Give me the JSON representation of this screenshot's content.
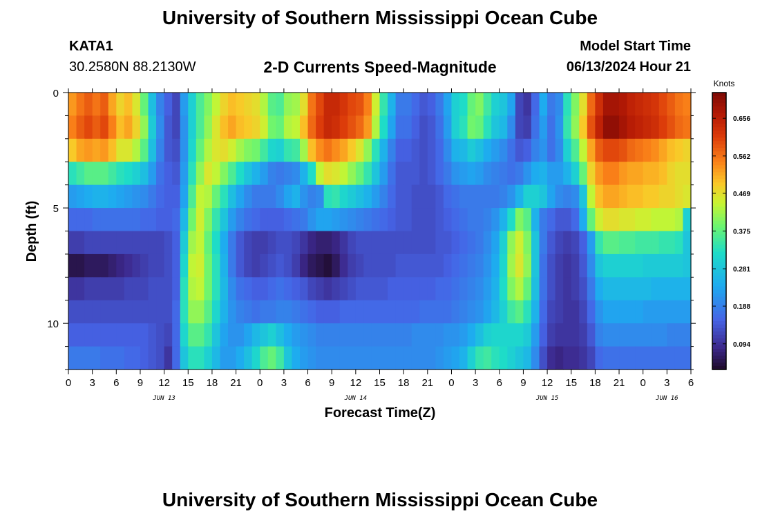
{
  "header": {
    "title": "University of Southern Mississippi Ocean Cube",
    "station_id": "KATA1",
    "station_coords": "30.2580N  88.2130W",
    "chart_title": "2-D Currents Speed-Magnitude",
    "model_start_label": "Model Start Time",
    "model_start_value": "06/13/2024 Hour 21"
  },
  "footer": {
    "title": "University of Southern Mississippi Ocean Cube"
  },
  "chart_data": {
    "type": "heatmap",
    "title": "2-D Currents Speed-Magnitude",
    "xlabel": "Forecast Time(Z)",
    "ylabel": "Depth (ft)",
    "x_ticks": [
      "0",
      "3",
      "6",
      "9",
      "12",
      "15",
      "18",
      "21",
      "0",
      "3",
      "6",
      "9",
      "12",
      "15",
      "18",
      "21",
      "0",
      "3",
      "6",
      "9",
      "12",
      "15",
      "18",
      "21",
      "0",
      "3",
      "6"
    ],
    "x_range_hours": [
      0,
      78
    ],
    "date_labels": [
      {
        "label": "JUN 13",
        "hour": 12
      },
      {
        "label": "JUN 14",
        "hour": 36
      },
      {
        "label": "JUN 15",
        "hour": 60
      },
      {
        "label": "JUN 16",
        "hour": 75
      }
    ],
    "y_ticks": [
      "0",
      "5",
      "10"
    ],
    "y_range_ft": [
      0,
      12
    ],
    "depth_rows_ft": [
      0,
      1,
      2,
      3,
      4,
      5,
      6,
      7,
      8,
      9,
      10,
      11
    ],
    "time_step_hours": 1,
    "colorbar": {
      "units": "Knots",
      "tick_labels": [
        "0.656",
        "0.562",
        "0.469",
        "0.375",
        "0.281",
        "0.188",
        "0.094"
      ],
      "tick_values": [
        0.656,
        0.562,
        0.469,
        0.375,
        0.281,
        0.188,
        0.094
      ],
      "range": [
        0.03,
        0.72
      ]
    },
    "speed_knots_rows": [
      [
        0.53,
        0.56,
        0.58,
        0.56,
        0.58,
        0.52,
        0.48,
        0.5,
        0.46,
        0.38,
        0.27,
        0.19,
        0.15,
        0.12,
        0.22,
        0.3,
        0.36,
        0.4,
        0.44,
        0.48,
        0.5,
        0.49,
        0.48,
        0.47,
        0.43,
        0.37,
        0.36,
        0.41,
        0.42,
        0.47,
        0.56,
        0.6,
        0.64,
        0.64,
        0.62,
        0.6,
        0.59,
        0.55,
        0.45,
        0.34,
        0.25,
        0.18,
        0.18,
        0.16,
        0.14,
        0.15,
        0.18,
        0.23,
        0.3,
        0.32,
        0.38,
        0.4,
        0.35,
        0.3,
        0.28,
        0.23,
        0.12,
        0.1,
        0.16,
        0.24,
        0.18,
        0.2,
        0.33,
        0.4,
        0.47,
        0.57,
        0.63,
        0.68,
        0.68,
        0.67,
        0.65,
        0.64,
        0.63,
        0.62,
        0.6,
        0.58,
        0.56,
        0.55
      ],
      [
        0.55,
        0.58,
        0.6,
        0.58,
        0.6,
        0.55,
        0.5,
        0.52,
        0.48,
        0.41,
        0.29,
        0.2,
        0.14,
        0.12,
        0.21,
        0.3,
        0.36,
        0.41,
        0.46,
        0.5,
        0.52,
        0.5,
        0.49,
        0.48,
        0.45,
        0.39,
        0.38,
        0.43,
        0.44,
        0.5,
        0.57,
        0.61,
        0.64,
        0.63,
        0.61,
        0.59,
        0.57,
        0.53,
        0.43,
        0.32,
        0.23,
        0.17,
        0.17,
        0.15,
        0.13,
        0.14,
        0.17,
        0.22,
        0.3,
        0.33,
        0.39,
        0.38,
        0.33,
        0.28,
        0.26,
        0.2,
        0.12,
        0.11,
        0.17,
        0.22,
        0.17,
        0.21,
        0.34,
        0.41,
        0.49,
        0.59,
        0.65,
        0.7,
        0.7,
        0.68,
        0.66,
        0.65,
        0.64,
        0.63,
        0.61,
        0.59,
        0.57,
        0.56
      ],
      [
        0.49,
        0.52,
        0.53,
        0.52,
        0.53,
        0.5,
        0.46,
        0.46,
        0.43,
        0.37,
        0.27,
        0.19,
        0.14,
        0.13,
        0.21,
        0.31,
        0.38,
        0.43,
        0.46,
        0.47,
        0.45,
        0.42,
        0.4,
        0.39,
        0.35,
        0.31,
        0.3,
        0.34,
        0.35,
        0.42,
        0.5,
        0.54,
        0.56,
        0.54,
        0.52,
        0.49,
        0.46,
        0.41,
        0.33,
        0.25,
        0.19,
        0.15,
        0.15,
        0.14,
        0.13,
        0.14,
        0.16,
        0.2,
        0.25,
        0.26,
        0.29,
        0.27,
        0.24,
        0.22,
        0.2,
        0.17,
        0.14,
        0.15,
        0.19,
        0.21,
        0.17,
        0.2,
        0.3,
        0.36,
        0.44,
        0.52,
        0.58,
        0.6,
        0.6,
        0.59,
        0.57,
        0.56,
        0.55,
        0.54,
        0.52,
        0.5,
        0.49,
        0.48
      ],
      [
        0.33,
        0.35,
        0.37,
        0.37,
        0.37,
        0.35,
        0.33,
        0.32,
        0.3,
        0.27,
        0.22,
        0.17,
        0.15,
        0.14,
        0.22,
        0.33,
        0.41,
        0.46,
        0.44,
        0.4,
        0.36,
        0.32,
        0.28,
        0.25,
        0.22,
        0.19,
        0.18,
        0.19,
        0.2,
        0.25,
        0.32,
        0.44,
        0.47,
        0.46,
        0.44,
        0.41,
        0.38,
        0.34,
        0.28,
        0.22,
        0.17,
        0.14,
        0.14,
        0.14,
        0.13,
        0.14,
        0.16,
        0.18,
        0.21,
        0.22,
        0.23,
        0.22,
        0.2,
        0.19,
        0.18,
        0.17,
        0.18,
        0.21,
        0.24,
        0.25,
        0.22,
        0.22,
        0.25,
        0.3,
        0.38,
        0.48,
        0.53,
        0.55,
        0.55,
        0.53,
        0.52,
        0.52,
        0.51,
        0.51,
        0.5,
        0.48,
        0.47,
        0.47
      ],
      [
        0.22,
        0.23,
        0.24,
        0.25,
        0.25,
        0.24,
        0.23,
        0.22,
        0.21,
        0.2,
        0.18,
        0.16,
        0.15,
        0.15,
        0.23,
        0.36,
        0.44,
        0.43,
        0.38,
        0.33,
        0.27,
        0.23,
        0.2,
        0.18,
        0.18,
        0.18,
        0.2,
        0.23,
        0.25,
        0.21,
        0.19,
        0.2,
        0.33,
        0.34,
        0.31,
        0.29,
        0.27,
        0.25,
        0.22,
        0.19,
        0.16,
        0.14,
        0.14,
        0.13,
        0.13,
        0.13,
        0.14,
        0.16,
        0.17,
        0.18,
        0.18,
        0.18,
        0.18,
        0.18,
        0.19,
        0.21,
        0.25,
        0.3,
        0.3,
        0.28,
        0.23,
        0.2,
        0.19,
        0.2,
        0.28,
        0.44,
        0.5,
        0.52,
        0.52,
        0.51,
        0.5,
        0.5,
        0.49,
        0.49,
        0.48,
        0.48,
        0.47,
        0.46
      ],
      [
        0.16,
        0.16,
        0.16,
        0.17,
        0.17,
        0.17,
        0.17,
        0.17,
        0.17,
        0.16,
        0.16,
        0.15,
        0.15,
        0.16,
        0.26,
        0.39,
        0.45,
        0.4,
        0.34,
        0.28,
        0.22,
        0.19,
        0.17,
        0.16,
        0.15,
        0.15,
        0.15,
        0.16,
        0.17,
        0.18,
        0.21,
        0.23,
        0.23,
        0.22,
        0.21,
        0.2,
        0.19,
        0.18,
        0.17,
        0.16,
        0.15,
        0.14,
        0.14,
        0.13,
        0.13,
        0.13,
        0.14,
        0.15,
        0.16,
        0.17,
        0.18,
        0.18,
        0.19,
        0.21,
        0.25,
        0.32,
        0.4,
        0.37,
        0.25,
        0.18,
        0.16,
        0.14,
        0.14,
        0.16,
        0.24,
        0.38,
        0.45,
        0.47,
        0.47,
        0.46,
        0.46,
        0.45,
        0.45,
        0.44,
        0.44,
        0.44,
        0.43,
        0.3
      ],
      [
        0.11,
        0.11,
        0.12,
        0.12,
        0.12,
        0.12,
        0.12,
        0.12,
        0.12,
        0.12,
        0.12,
        0.12,
        0.13,
        0.15,
        0.29,
        0.42,
        0.44,
        0.38,
        0.32,
        0.24,
        0.18,
        0.14,
        0.12,
        0.11,
        0.11,
        0.12,
        0.13,
        0.13,
        0.12,
        0.1,
        0.08,
        0.07,
        0.07,
        0.08,
        0.1,
        0.12,
        0.13,
        0.13,
        0.13,
        0.13,
        0.13,
        0.13,
        0.13,
        0.13,
        0.13,
        0.13,
        0.14,
        0.14,
        0.15,
        0.16,
        0.17,
        0.18,
        0.2,
        0.23,
        0.3,
        0.41,
        0.45,
        0.4,
        0.28,
        0.18,
        0.14,
        0.12,
        0.11,
        0.12,
        0.15,
        0.22,
        0.34,
        0.37,
        0.37,
        0.36,
        0.36,
        0.35,
        0.35,
        0.35,
        0.34,
        0.34,
        0.33,
        0.28
      ],
      [
        0.05,
        0.05,
        0.06,
        0.06,
        0.06,
        0.07,
        0.08,
        0.09,
        0.1,
        0.11,
        0.12,
        0.12,
        0.13,
        0.15,
        0.31,
        0.44,
        0.45,
        0.39,
        0.33,
        0.25,
        0.18,
        0.14,
        0.12,
        0.11,
        0.12,
        0.13,
        0.14,
        0.13,
        0.11,
        0.08,
        0.06,
        0.05,
        0.04,
        0.06,
        0.09,
        0.11,
        0.12,
        0.13,
        0.13,
        0.13,
        0.13,
        0.14,
        0.14,
        0.14,
        0.14,
        0.14,
        0.14,
        0.15,
        0.16,
        0.17,
        0.18,
        0.19,
        0.21,
        0.24,
        0.31,
        0.42,
        0.46,
        0.41,
        0.28,
        0.17,
        0.13,
        0.11,
        0.1,
        0.11,
        0.14,
        0.2,
        0.28,
        0.3,
        0.3,
        0.3,
        0.3,
        0.3,
        0.29,
        0.29,
        0.29,
        0.29,
        0.29,
        0.28
      ],
      [
        0.1,
        0.1,
        0.11,
        0.11,
        0.11,
        0.11,
        0.11,
        0.12,
        0.12,
        0.12,
        0.13,
        0.13,
        0.13,
        0.15,
        0.33,
        0.43,
        0.44,
        0.39,
        0.33,
        0.26,
        0.2,
        0.17,
        0.16,
        0.15,
        0.15,
        0.16,
        0.17,
        0.16,
        0.15,
        0.14,
        0.12,
        0.11,
        0.1,
        0.11,
        0.12,
        0.13,
        0.14,
        0.14,
        0.14,
        0.14,
        0.15,
        0.15,
        0.15,
        0.15,
        0.15,
        0.15,
        0.16,
        0.16,
        0.17,
        0.18,
        0.19,
        0.2,
        0.22,
        0.25,
        0.32,
        0.4,
        0.43,
        0.38,
        0.27,
        0.17,
        0.13,
        0.11,
        0.1,
        0.11,
        0.13,
        0.18,
        0.24,
        0.26,
        0.26,
        0.26,
        0.26,
        0.26,
        0.26,
        0.25,
        0.25,
        0.25,
        0.25,
        0.25
      ],
      [
        0.13,
        0.13,
        0.13,
        0.13,
        0.13,
        0.13,
        0.13,
        0.13,
        0.13,
        0.13,
        0.13,
        0.13,
        0.13,
        0.16,
        0.33,
        0.41,
        0.41,
        0.37,
        0.31,
        0.25,
        0.21,
        0.19,
        0.18,
        0.17,
        0.18,
        0.18,
        0.19,
        0.19,
        0.18,
        0.17,
        0.16,
        0.15,
        0.15,
        0.15,
        0.16,
        0.16,
        0.16,
        0.16,
        0.16,
        0.16,
        0.16,
        0.16,
        0.16,
        0.16,
        0.17,
        0.17,
        0.17,
        0.17,
        0.18,
        0.19,
        0.2,
        0.21,
        0.23,
        0.26,
        0.3,
        0.35,
        0.37,
        0.33,
        0.25,
        0.16,
        0.12,
        0.11,
        0.1,
        0.1,
        0.12,
        0.16,
        0.21,
        0.23,
        0.23,
        0.23,
        0.23,
        0.23,
        0.22,
        0.22,
        0.22,
        0.22,
        0.22,
        0.22
      ],
      [
        0.15,
        0.15,
        0.15,
        0.15,
        0.15,
        0.15,
        0.15,
        0.15,
        0.15,
        0.15,
        0.14,
        0.13,
        0.12,
        0.16,
        0.31,
        0.37,
        0.37,
        0.34,
        0.28,
        0.23,
        0.21,
        0.21,
        0.23,
        0.26,
        0.28,
        0.3,
        0.27,
        0.24,
        0.22,
        0.21,
        0.2,
        0.19,
        0.19,
        0.19,
        0.19,
        0.19,
        0.19,
        0.19,
        0.19,
        0.19,
        0.19,
        0.19,
        0.19,
        0.2,
        0.2,
        0.2,
        0.2,
        0.21,
        0.21,
        0.22,
        0.24,
        0.27,
        0.3,
        0.31,
        0.31,
        0.31,
        0.31,
        0.29,
        0.22,
        0.15,
        0.11,
        0.1,
        0.1,
        0.1,
        0.11,
        0.14,
        0.19,
        0.2,
        0.2,
        0.2,
        0.2,
        0.2,
        0.2,
        0.2,
        0.2,
        0.19,
        0.19,
        0.19
      ],
      [
        0.18,
        0.18,
        0.18,
        0.18,
        0.17,
        0.17,
        0.17,
        0.16,
        0.16,
        0.15,
        0.14,
        0.13,
        0.1,
        0.16,
        0.28,
        0.33,
        0.33,
        0.3,
        0.26,
        0.22,
        0.22,
        0.24,
        0.27,
        0.31,
        0.36,
        0.38,
        0.35,
        0.28,
        0.24,
        0.22,
        0.21,
        0.2,
        0.2,
        0.2,
        0.2,
        0.2,
        0.2,
        0.2,
        0.2,
        0.2,
        0.2,
        0.2,
        0.2,
        0.2,
        0.2,
        0.2,
        0.21,
        0.22,
        0.23,
        0.25,
        0.3,
        0.34,
        0.35,
        0.33,
        0.32,
        0.3,
        0.28,
        0.26,
        0.2,
        0.13,
        0.09,
        0.08,
        0.09,
        0.09,
        0.1,
        0.12,
        0.16,
        0.17,
        0.17,
        0.17,
        0.17,
        0.17,
        0.17,
        0.17,
        0.17,
        0.17,
        0.17,
        0.17
      ]
    ]
  }
}
